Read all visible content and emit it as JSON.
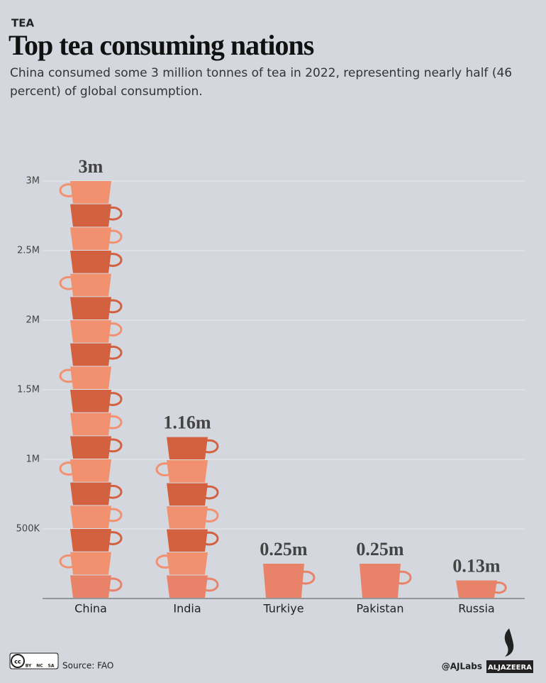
{
  "kicker": "TEA",
  "chart_data": {
    "type": "bar",
    "title": "Top tea consuming nations",
    "subtitle": "China consumed some 3 million tonnes of tea in 2022, representing nearly half (46 percent) of global consumption.",
    "categories": [
      "China",
      "India",
      "Turkiye",
      "Pakistan",
      "Russia"
    ],
    "values": [
      3000000,
      1160000,
      250000,
      250000,
      130000
    ],
    "value_labels": [
      "3m",
      "1.16m",
      "0.25m",
      "0.25m",
      "0.13m"
    ],
    "colors": [
      "#e8836a",
      "#d3613f",
      "#f29170"
    ],
    "ylim": [
      0,
      3000000
    ],
    "yticks": [
      {
        "value": 500000,
        "label": "500K"
      },
      {
        "value": 1000000,
        "label": "1M"
      },
      {
        "value": 1500000,
        "label": "1.5M"
      },
      {
        "value": 2000000,
        "label": "2M"
      },
      {
        "value": 2500000,
        "label": "2.5M"
      },
      {
        "value": 3000000,
        "label": "3M"
      }
    ],
    "grid": true
  },
  "footer": {
    "license": [
      "BY",
      "NC",
      "SA"
    ],
    "source": "Source: FAO",
    "credit": "@AJLabs",
    "brand": "ALJAZEERA"
  }
}
